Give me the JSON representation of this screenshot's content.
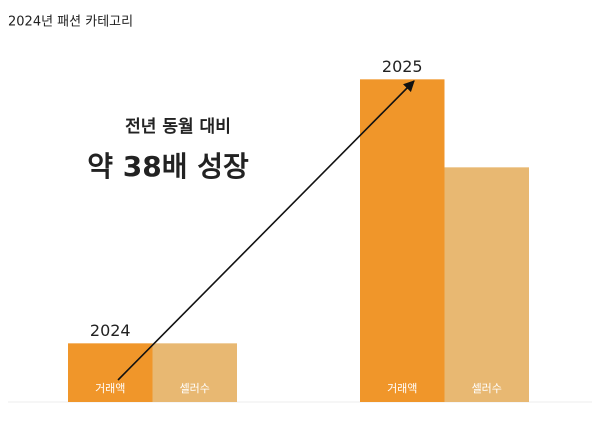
{
  "chart_data": {
    "type": "bar",
    "title": "2024년 패션 카테고리",
    "annotations": [
      "전년 동월 대비",
      "약 38배 성장"
    ],
    "categories": [
      "2024",
      "2025"
    ],
    "series": [
      {
        "name": "거래액",
        "color": "#f0962a",
        "values": [
          1,
          5.5
        ]
      },
      {
        "name": "셀러수",
        "color": "#e8b872",
        "values": [
          1,
          4
        ]
      }
    ],
    "ylim": [
      0,
      6
    ]
  }
}
